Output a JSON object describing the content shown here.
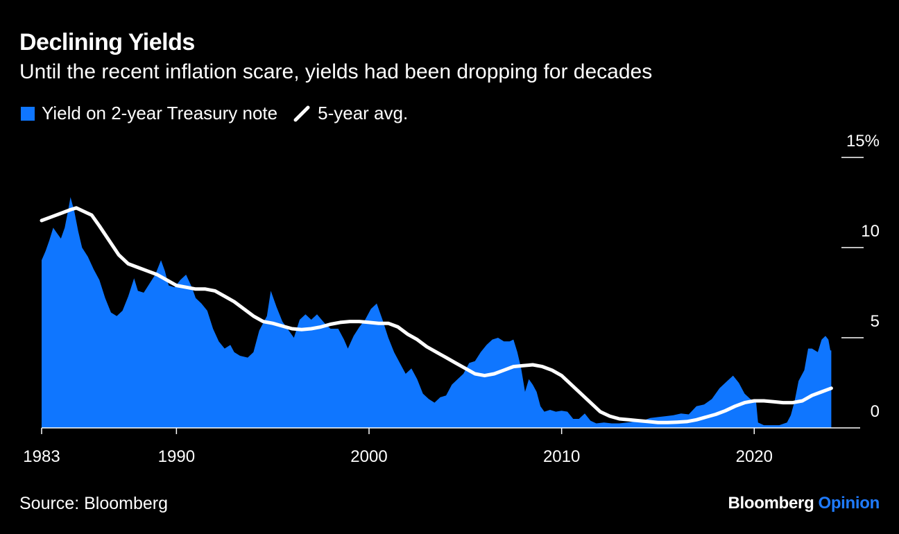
{
  "header": {
    "title": "Declining Yields",
    "subtitle": "Until the recent inflation scare, yields had been dropping for decades"
  },
  "footer": {
    "source": "Source: Bloomberg",
    "brand_main": "Bloomberg",
    "brand_accent": "Opinion"
  },
  "colors": {
    "background": "#000000",
    "area": "#0f76ff",
    "avg_line": "#ffffff",
    "brand_accent": "#1f7bff"
  },
  "chart_data": {
    "type": "area",
    "title": "Declining Yields",
    "subtitle": "Until the recent inflation scare, yields had been dropping for decades",
    "legend": [
      {
        "name": "Yield on 2-year Treasury note",
        "symbol": "box",
        "color": "#0f76ff"
      },
      {
        "name": "5-year avg.",
        "symbol": "line",
        "color": "#ffffff"
      }
    ],
    "legend_placement": "top-left",
    "x_range": [
      1983.0,
      2025.5
    ],
    "y_range": [
      0,
      15
    ],
    "y_axis_side": "right",
    "x_ticks": [
      {
        "value": 1983,
        "label": "1983"
      },
      {
        "value": 1990,
        "label": "1990"
      },
      {
        "value": 2000,
        "label": "2000"
      },
      {
        "value": 2010,
        "label": "2010"
      },
      {
        "value": 2020,
        "label": "2020"
      }
    ],
    "y_ticks": [
      {
        "value": 15,
        "label": "15%"
      },
      {
        "value": 10,
        "label": "10"
      },
      {
        "value": 5,
        "label": "5"
      },
      {
        "value": 0,
        "label": "0"
      }
    ],
    "grid": false,
    "series": [
      {
        "name": "Yield on 2-year Treasury note",
        "type": "area",
        "points": [
          [
            1983.0,
            9.3
          ],
          [
            1983.2,
            9.8
          ],
          [
            1983.4,
            10.4
          ],
          [
            1983.6,
            11.1
          ],
          [
            1983.8,
            10.8
          ],
          [
            1984.0,
            10.5
          ],
          [
            1984.2,
            11.1
          ],
          [
            1984.4,
            12.2
          ],
          [
            1984.5,
            12.8
          ],
          [
            1984.7,
            12.0
          ],
          [
            1984.9,
            10.9
          ],
          [
            1985.1,
            10.0
          ],
          [
            1985.4,
            9.5
          ],
          [
            1985.7,
            8.8
          ],
          [
            1986.0,
            8.2
          ],
          [
            1986.3,
            7.2
          ],
          [
            1986.6,
            6.4
          ],
          [
            1986.9,
            6.2
          ],
          [
            1987.2,
            6.5
          ],
          [
            1987.5,
            7.3
          ],
          [
            1987.8,
            8.3
          ],
          [
            1988.0,
            7.6
          ],
          [
            1988.3,
            7.5
          ],
          [
            1988.6,
            8.0
          ],
          [
            1988.9,
            8.5
          ],
          [
            1989.2,
            9.3
          ],
          [
            1989.4,
            8.7
          ],
          [
            1989.6,
            7.9
          ],
          [
            1989.9,
            7.8
          ],
          [
            1990.2,
            8.2
          ],
          [
            1990.5,
            8.5
          ],
          [
            1990.8,
            7.8
          ],
          [
            1991.0,
            7.2
          ],
          [
            1991.3,
            6.9
          ],
          [
            1991.6,
            6.5
          ],
          [
            1991.9,
            5.5
          ],
          [
            1992.2,
            4.8
          ],
          [
            1992.5,
            4.4
          ],
          [
            1992.8,
            4.6
          ],
          [
            1993.0,
            4.2
          ],
          [
            1993.3,
            4.0
          ],
          [
            1993.7,
            3.9
          ],
          [
            1994.0,
            4.2
          ],
          [
            1994.3,
            5.4
          ],
          [
            1994.7,
            6.2
          ],
          [
            1994.9,
            7.6
          ],
          [
            1995.2,
            6.7
          ],
          [
            1995.5,
            5.9
          ],
          [
            1995.9,
            5.3
          ],
          [
            1996.1,
            5.0
          ],
          [
            1996.4,
            6.0
          ],
          [
            1996.7,
            6.3
          ],
          [
            1997.0,
            6.0
          ],
          [
            1997.3,
            6.3
          ],
          [
            1997.7,
            5.8
          ],
          [
            1998.0,
            5.5
          ],
          [
            1998.4,
            5.5
          ],
          [
            1998.7,
            4.9
          ],
          [
            1998.9,
            4.4
          ],
          [
            1999.2,
            5.1
          ],
          [
            1999.5,
            5.6
          ],
          [
            1999.8,
            6.0
          ],
          [
            2000.1,
            6.6
          ],
          [
            2000.4,
            6.9
          ],
          [
            2000.7,
            6.0
          ],
          [
            2001.0,
            5.0
          ],
          [
            2001.3,
            4.2
          ],
          [
            2001.6,
            3.6
          ],
          [
            2001.9,
            3.0
          ],
          [
            2002.2,
            3.3
          ],
          [
            2002.5,
            2.7
          ],
          [
            2002.8,
            1.9
          ],
          [
            2003.1,
            1.6
          ],
          [
            2003.4,
            1.4
          ],
          [
            2003.7,
            1.7
          ],
          [
            2004.0,
            1.8
          ],
          [
            2004.3,
            2.4
          ],
          [
            2004.6,
            2.7
          ],
          [
            2004.9,
            3.0
          ],
          [
            2005.2,
            3.6
          ],
          [
            2005.5,
            3.7
          ],
          [
            2005.8,
            4.2
          ],
          [
            2006.1,
            4.6
          ],
          [
            2006.4,
            4.9
          ],
          [
            2006.7,
            5.0
          ],
          [
            2007.0,
            4.8
          ],
          [
            2007.3,
            4.8
          ],
          [
            2007.5,
            4.9
          ],
          [
            2007.7,
            4.2
          ],
          [
            2007.9,
            3.3
          ],
          [
            2008.1,
            2.0
          ],
          [
            2008.3,
            2.7
          ],
          [
            2008.5,
            2.4
          ],
          [
            2008.7,
            2.0
          ],
          [
            2008.9,
            1.2
          ],
          [
            2009.1,
            0.9
          ],
          [
            2009.4,
            1.0
          ],
          [
            2009.7,
            0.9
          ],
          [
            2010.0,
            0.95
          ],
          [
            2010.3,
            0.9
          ],
          [
            2010.6,
            0.5
          ],
          [
            2010.9,
            0.5
          ],
          [
            2011.2,
            0.8
          ],
          [
            2011.5,
            0.4
          ],
          [
            2011.8,
            0.25
          ],
          [
            2012.2,
            0.3
          ],
          [
            2012.6,
            0.25
          ],
          [
            2013.0,
            0.25
          ],
          [
            2013.4,
            0.3
          ],
          [
            2013.8,
            0.35
          ],
          [
            2014.2,
            0.4
          ],
          [
            2014.6,
            0.55
          ],
          [
            2015.0,
            0.6
          ],
          [
            2015.4,
            0.65
          ],
          [
            2015.8,
            0.7
          ],
          [
            2016.2,
            0.8
          ],
          [
            2016.6,
            0.75
          ],
          [
            2017.0,
            1.2
          ],
          [
            2017.4,
            1.3
          ],
          [
            2017.8,
            1.6
          ],
          [
            2018.2,
            2.2
          ],
          [
            2018.6,
            2.6
          ],
          [
            2018.9,
            2.9
          ],
          [
            2019.2,
            2.5
          ],
          [
            2019.5,
            1.9
          ],
          [
            2019.8,
            1.6
          ],
          [
            2020.1,
            1.4
          ],
          [
            2020.2,
            0.3
          ],
          [
            2020.5,
            0.15
          ],
          [
            2020.9,
            0.15
          ],
          [
            2021.3,
            0.15
          ],
          [
            2021.7,
            0.3
          ],
          [
            2021.9,
            0.7
          ],
          [
            2022.1,
            1.5
          ],
          [
            2022.3,
            2.6
          ],
          [
            2022.6,
            3.2
          ],
          [
            2022.8,
            4.4
          ],
          [
            2023.0,
            4.4
          ],
          [
            2023.3,
            4.2
          ],
          [
            2023.5,
            4.9
          ],
          [
            2023.7,
            5.1
          ],
          [
            2023.85,
            4.9
          ],
          [
            2023.95,
            4.3
          ],
          [
            2024.0,
            4.3
          ]
        ]
      },
      {
        "name": "5-year avg.",
        "type": "line",
        "points": [
          [
            1983.0,
            11.5
          ],
          [
            1983.5,
            11.7
          ],
          [
            1984.0,
            11.9
          ],
          [
            1984.5,
            12.1
          ],
          [
            1984.8,
            12.2
          ],
          [
            1985.2,
            12.0
          ],
          [
            1985.6,
            11.8
          ],
          [
            1986.0,
            11.2
          ],
          [
            1986.5,
            10.4
          ],
          [
            1987.0,
            9.6
          ],
          [
            1987.5,
            9.1
          ],
          [
            1988.0,
            8.9
          ],
          [
            1988.5,
            8.7
          ],
          [
            1989.0,
            8.5
          ],
          [
            1989.5,
            8.2
          ],
          [
            1990.0,
            7.9
          ],
          [
            1990.5,
            7.8
          ],
          [
            1991.0,
            7.7
          ],
          [
            1991.5,
            7.7
          ],
          [
            1992.0,
            7.6
          ],
          [
            1992.5,
            7.3
          ],
          [
            1993.0,
            7.0
          ],
          [
            1993.5,
            6.6
          ],
          [
            1994.0,
            6.2
          ],
          [
            1994.5,
            5.9
          ],
          [
            1995.0,
            5.8
          ],
          [
            1995.5,
            5.65
          ],
          [
            1996.0,
            5.5
          ],
          [
            1996.5,
            5.45
          ],
          [
            1997.0,
            5.5
          ],
          [
            1997.5,
            5.6
          ],
          [
            1998.0,
            5.75
          ],
          [
            1998.5,
            5.85
          ],
          [
            1999.0,
            5.9
          ],
          [
            1999.5,
            5.9
          ],
          [
            2000.0,
            5.85
          ],
          [
            2000.5,
            5.8
          ],
          [
            2001.0,
            5.8
          ],
          [
            2001.5,
            5.6
          ],
          [
            2002.0,
            5.2
          ],
          [
            2002.5,
            4.9
          ],
          [
            2003.0,
            4.5
          ],
          [
            2003.5,
            4.2
          ],
          [
            2004.0,
            3.9
          ],
          [
            2004.5,
            3.6
          ],
          [
            2005.0,
            3.3
          ],
          [
            2005.5,
            3.0
          ],
          [
            2006.0,
            2.9
          ],
          [
            2006.5,
            3.0
          ],
          [
            2007.0,
            3.2
          ],
          [
            2007.5,
            3.4
          ],
          [
            2008.0,
            3.45
          ],
          [
            2008.5,
            3.5
          ],
          [
            2009.0,
            3.4
          ],
          [
            2009.5,
            3.2
          ],
          [
            2010.0,
            2.9
          ],
          [
            2010.5,
            2.4
          ],
          [
            2011.0,
            1.9
          ],
          [
            2011.5,
            1.4
          ],
          [
            2012.0,
            0.9
          ],
          [
            2012.5,
            0.65
          ],
          [
            2013.0,
            0.5
          ],
          [
            2013.5,
            0.45
          ],
          [
            2014.0,
            0.4
          ],
          [
            2014.5,
            0.35
          ],
          [
            2015.0,
            0.3
          ],
          [
            2015.5,
            0.3
          ],
          [
            2016.0,
            0.32
          ],
          [
            2016.5,
            0.35
          ],
          [
            2017.0,
            0.45
          ],
          [
            2017.5,
            0.6
          ],
          [
            2018.0,
            0.75
          ],
          [
            2018.5,
            0.95
          ],
          [
            2019.0,
            1.2
          ],
          [
            2019.5,
            1.4
          ],
          [
            2020.0,
            1.5
          ],
          [
            2020.5,
            1.5
          ],
          [
            2021.0,
            1.45
          ],
          [
            2021.5,
            1.4
          ],
          [
            2022.0,
            1.4
          ],
          [
            2022.5,
            1.5
          ],
          [
            2023.0,
            1.8
          ],
          [
            2023.5,
            2.0
          ],
          [
            2024.0,
            2.2
          ]
        ]
      }
    ]
  }
}
